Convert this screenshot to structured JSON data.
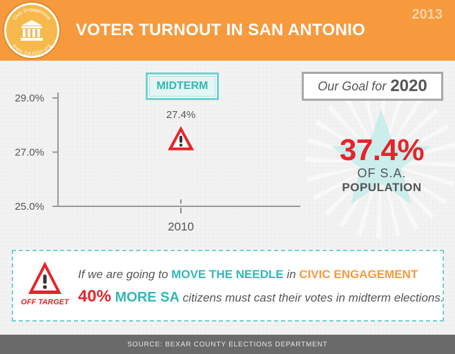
{
  "header": {
    "title": "VOTER TURNOUT IN SAN ANTONIO",
    "year": "2013",
    "seal_top_text": "Civic Engagement",
    "seal_bottom_text": "www.SA2020.org",
    "logo_icon": "building-columns-icon"
  },
  "chart_data": {
    "type": "scatter",
    "categories": [
      "2010"
    ],
    "values": [
      27.4
    ],
    "data_labels": [
      "27.4%"
    ],
    "y_ticks": [
      "29.0%",
      "27.0%",
      "25.0%"
    ],
    "ylim": [
      25.0,
      29.0
    ],
    "legend_label": "MIDTERM",
    "marker": "warning-triangle-icon"
  },
  "goal": {
    "label": "Our Goal for",
    "year": "2020",
    "value": "37.4%",
    "of_text": "OF S.A.",
    "population": "POPULATION"
  },
  "callout": {
    "icon": "warning-triangle-icon",
    "badge": "OFF TARGET",
    "line1": {
      "a": "If we are going to ",
      "b": "MOVE THE NEEDLE",
      "c": " in ",
      "d": "CIVIC ENGAGEMENT"
    },
    "line2": {
      "a": "40%",
      "b": " MORE SA",
      "c": " citizens must cast their votes in midterm elections."
    }
  },
  "footer": {
    "source": "SOURCE:  BEXAR COUNTY ELECTIONS DEPARTMENT"
  },
  "colors": {
    "orange": "#f79a3e",
    "teal": "#33b8b5",
    "red": "#e8232a",
    "gray": "#555555"
  }
}
